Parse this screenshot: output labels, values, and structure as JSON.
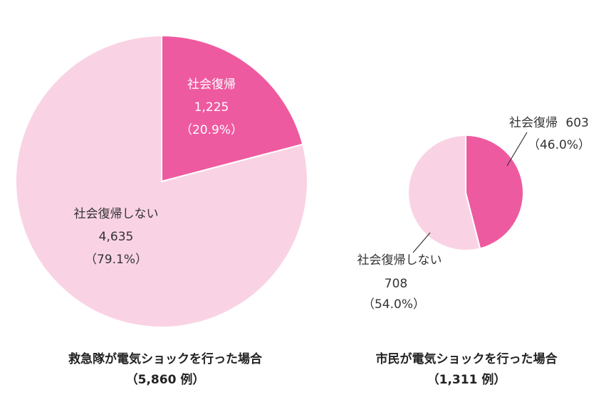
{
  "chart_data": [
    {
      "type": "pie",
      "caption": "救急隊が電気ショックを行った場合",
      "total_label": "（5,860 例）",
      "total": 5860,
      "slices": [
        {
          "name": "社会復帰",
          "value": 1225,
          "value_label": "1,225",
          "percent": 20.9,
          "percent_label": "（20.9%）",
          "color": "#ee5aa0"
        },
        {
          "name": "社会復帰しない",
          "value": 4635,
          "value_label": "4,635",
          "percent": 79.1,
          "percent_label": "（79.1%）",
          "color": "#f9d3e4"
        }
      ]
    },
    {
      "type": "pie",
      "caption": "市民が電気ショックを行った場合",
      "total_label": "（1,311 例）",
      "total": 1311,
      "slices": [
        {
          "name": "社会復帰",
          "value": 603,
          "value_label": "603",
          "percent": 46.0,
          "percent_label": "（46.0%）",
          "color": "#ee5aa0"
        },
        {
          "name": "社会復帰しない",
          "value": 708,
          "value_label": "708",
          "percent": 54.0,
          "percent_label": "（54.0%）",
          "color": "#f9d3e4"
        }
      ]
    }
  ]
}
